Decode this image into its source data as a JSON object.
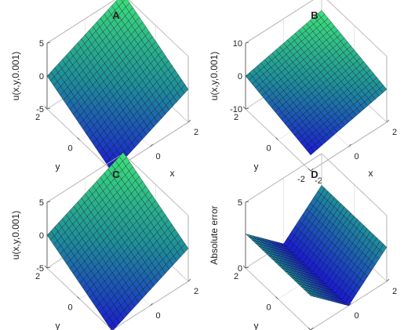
{
  "chart_data": [
    {
      "type": "surface",
      "title": "A",
      "xlabel": "x",
      "ylabel": "y",
      "zlabel": "u(x,y,0.001)",
      "xlim": [
        -2,
        2
      ],
      "ylim": [
        -2,
        2
      ],
      "zlim": [
        -5,
        5
      ],
      "xticks": [
        "-2",
        "0",
        "2"
      ],
      "yticks": [
        "-2",
        "0",
        "2"
      ],
      "zticks": [
        "-5",
        "0",
        "5"
      ],
      "surface": {
        "kind": "plane",
        "a": 1.3,
        "b": 1.3,
        "c": 0
      },
      "z_range": [
        -5.2,
        5.2
      ],
      "grid": 20,
      "colormap": "winter-like"
    },
    {
      "type": "surface",
      "title": "B",
      "xlabel": "x",
      "ylabel": "y",
      "zlabel": "u(x,y,0.001)",
      "xlim": [
        -2,
        2
      ],
      "ylim": [
        -2,
        2
      ],
      "zlim": [
        -10,
        10
      ],
      "xticks": [
        "-2",
        "0",
        "2"
      ],
      "yticks": [
        "-2",
        "0",
        "2"
      ],
      "zticks": [
        "-10",
        "0",
        "10"
      ],
      "surface": {
        "kind": "plane",
        "a": 1.3,
        "b": 1.3,
        "c": 0
      },
      "z_range": [
        -5.2,
        5.2
      ],
      "grid": 20,
      "colormap": "winter-like"
    },
    {
      "type": "surface",
      "title": "C",
      "xlabel": "x",
      "ylabel": "y",
      "zlabel": "u(x,y,0.001)",
      "xlim": [
        -2,
        2
      ],
      "ylim": [
        -2,
        2
      ],
      "zlim": [
        -5,
        5
      ],
      "xticks": [
        "-2",
        "0",
        "2"
      ],
      "yticks": [
        "-2",
        "0",
        "2"
      ],
      "zticks": [
        "-5",
        "0",
        "5"
      ],
      "surface": {
        "kind": "plane",
        "a": 1.3,
        "b": 1.3,
        "c": 0
      },
      "z_range": [
        -5.2,
        5.2
      ],
      "grid": 20,
      "colormap": "winter-like"
    },
    {
      "type": "surface",
      "title": "D",
      "xlabel": "x",
      "ylabel": "y",
      "zlabel": "Absolute error",
      "xlim": [
        -2,
        2
      ],
      "ylim": [
        -2,
        2
      ],
      "zlim": [
        0,
        5
      ],
      "xticks": [
        "-2",
        "0",
        "2"
      ],
      "yticks": [
        "-2",
        "0",
        "2"
      ],
      "zticks": [
        "0",
        "5"
      ],
      "surface": {
        "kind": "vee",
        "a": 1.3,
        "b": 1.3,
        "c": 0
      },
      "z_range": [
        0,
        5.2
      ],
      "grid": 20,
      "colormap": "winter-like"
    }
  ],
  "colors": {
    "colormap_low": "#1a1ad1",
    "colormap_mid": "#1f8f9a",
    "colormap_high": "#3ee07a",
    "box": "#4d4d4d",
    "grid": "#d9d9d9"
  }
}
